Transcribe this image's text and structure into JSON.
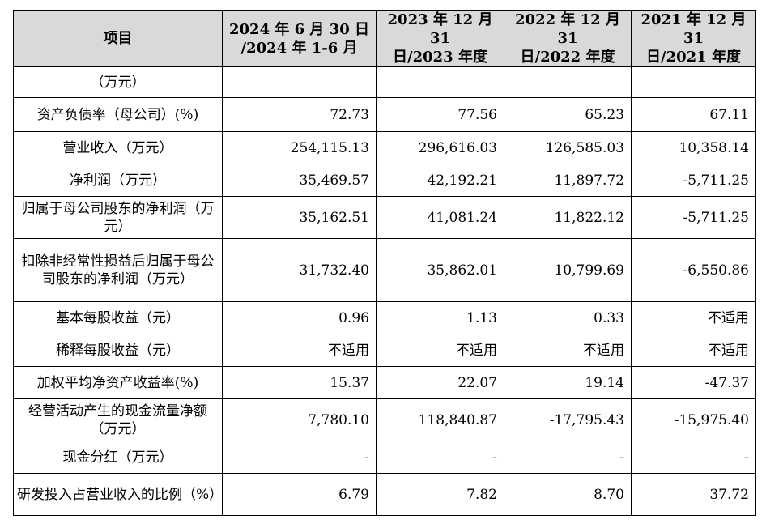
{
  "table": {
    "header": {
      "item": "项目",
      "periods": [
        {
          "line1": "2024 年 6 月 30 日",
          "line2": "/2024 年 1-6 月"
        },
        {
          "line1": "2023 年 12 月 31",
          "line2": "日/2023 年度"
        },
        {
          "line1": "2022 年 12 月 31",
          "line2": "日/2022 年度"
        },
        {
          "line1": "2021 年 12 月 31",
          "line2": "日/2021 年度"
        }
      ]
    },
    "rows": [
      {
        "label": "（万元）",
        "values": [
          "",
          "",
          "",
          ""
        ]
      },
      {
        "label": "资产负债率（母公司）(%)",
        "values": [
          "72.73",
          "77.56",
          "65.23",
          "67.11"
        ]
      },
      {
        "label": "营业收入（万元）",
        "values": [
          "254,115.13",
          "296,616.03",
          "126,585.03",
          "10,358.14"
        ]
      },
      {
        "label": "净利润（万元）",
        "values": [
          "35,469.57",
          "42,192.21",
          "11,897.72",
          "-5,711.25"
        ]
      },
      {
        "label": "归属于母公司股东的净利润（万元）",
        "values": [
          "35,162.51",
          "41,081.24",
          "11,822.12",
          "-5,711.25"
        ]
      },
      {
        "label": "扣除非经常性损益后归属于母公司股东的净利润（万元）",
        "values": [
          "31,732.40",
          "35,862.01",
          "10,799.69",
          "-6,550.86"
        ]
      },
      {
        "label": "基本每股收益（元）",
        "values": [
          "0.96",
          "1.13",
          "0.33",
          "不适用"
        ]
      },
      {
        "label": "稀释每股收益（元）",
        "values": [
          "不适用",
          "不适用",
          "不适用",
          "不适用"
        ]
      },
      {
        "label": "加权平均净资产收益率(%)",
        "values": [
          "15.37",
          "22.07",
          "19.14",
          "-47.37"
        ]
      },
      {
        "label": "经营活动产生的现金流量净额（万元）",
        "values": [
          "7,780.10",
          "118,840.87",
          "-17,795.43",
          "-15,975.40"
        ]
      },
      {
        "label": "现金分红（万元）",
        "values": [
          "-",
          "-",
          "-",
          "-"
        ]
      },
      {
        "label": "研发投入占营业收入的比例（%）",
        "values": [
          "6.79",
          "7.82",
          "8.70",
          "37.72"
        ]
      }
    ]
  }
}
